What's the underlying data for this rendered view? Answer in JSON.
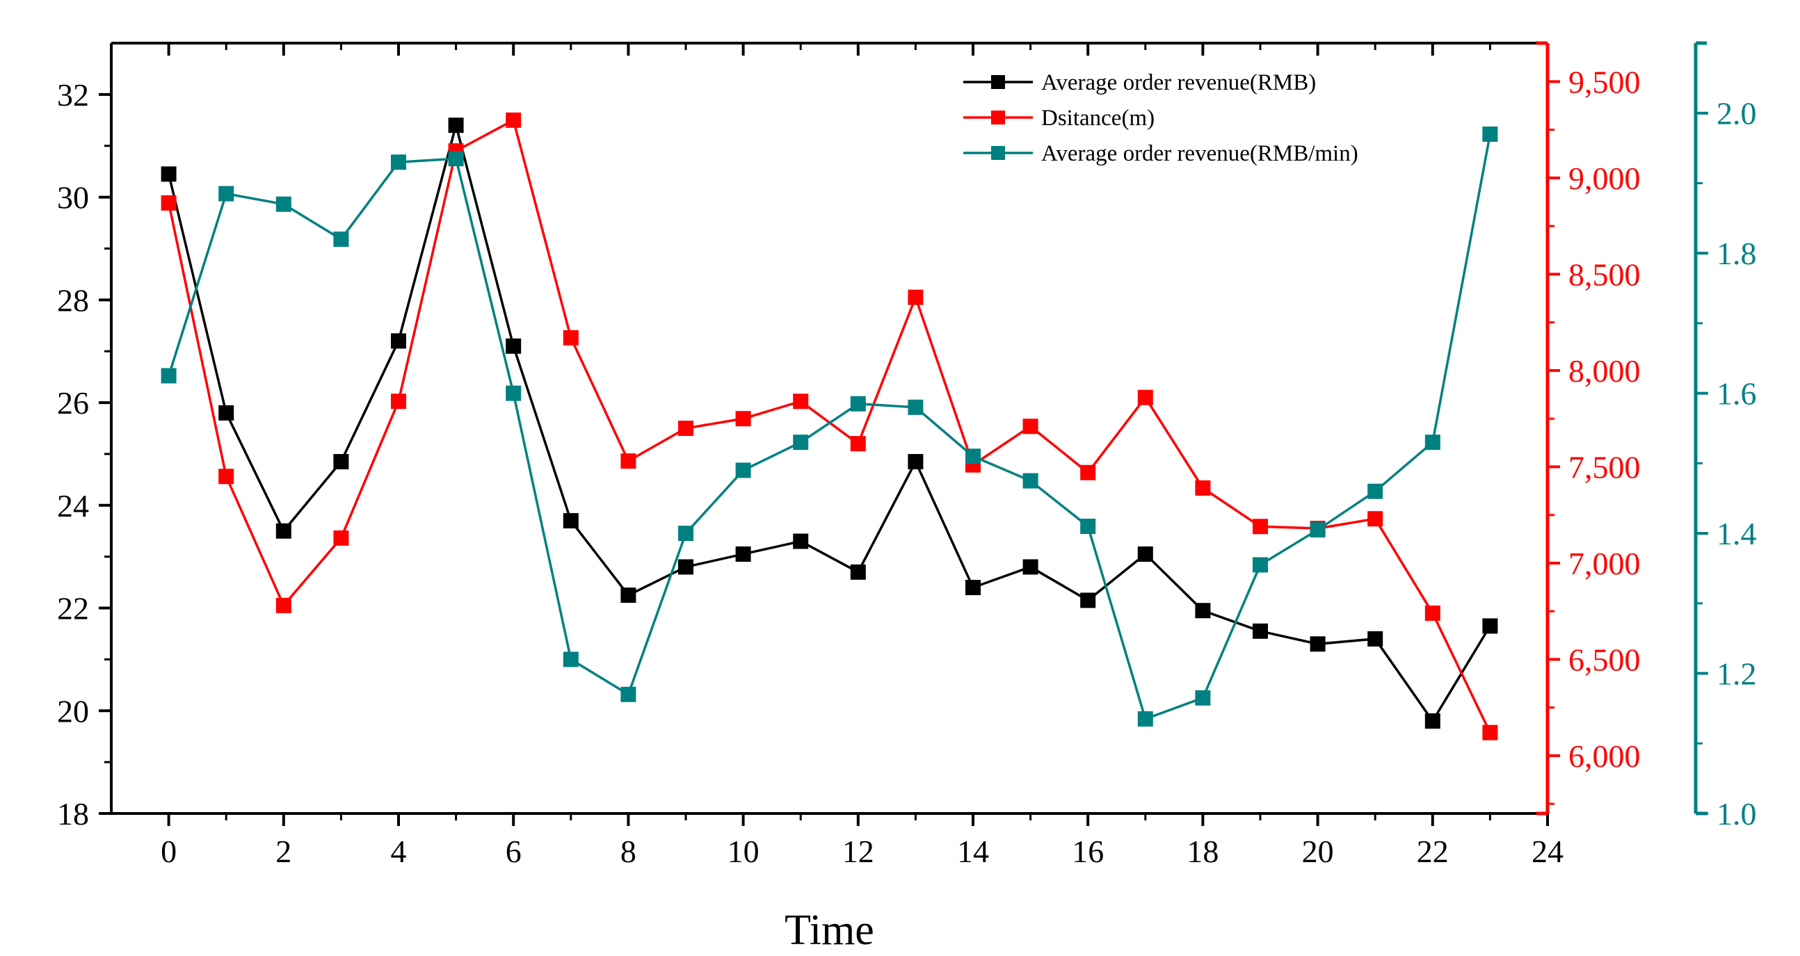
{
  "chart_data": {
    "type": "line",
    "xlabel": "Time",
    "x": [
      0,
      1,
      2,
      3,
      4,
      5,
      6,
      7,
      8,
      9,
      10,
      11,
      12,
      13,
      14,
      15,
      16,
      17,
      18,
      19,
      20,
      21,
      22,
      23
    ],
    "x_ticks": [
      0,
      2,
      4,
      6,
      8,
      10,
      12,
      14,
      16,
      18,
      20,
      22,
      24
    ],
    "x_tick_labels": [
      "0",
      "2",
      "4",
      "6",
      "8",
      "10",
      "12",
      "14",
      "16",
      "18",
      "20",
      "22",
      "24"
    ],
    "xlim": [
      -1,
      24
    ],
    "legend_position": "top-right",
    "grid": false,
    "axes": {
      "left": {
        "ylim": [
          18,
          33
        ],
        "ticks": [
          18,
          20,
          22,
          24,
          26,
          28,
          30,
          32
        ],
        "tick_labels": [
          "18",
          "20",
          "22",
          "24",
          "26",
          "28",
          "30",
          "32"
        ],
        "color": "#000000"
      },
      "right1": {
        "ylim": [
          5700,
          9700
        ],
        "ticks": [
          6000,
          6500,
          7000,
          7500,
          8000,
          8500,
          9000,
          9500
        ],
        "tick_labels": [
          "6,000",
          "6,500",
          "7,000",
          "7,500",
          "8,000",
          "8,500",
          "9,000",
          "9,500"
        ],
        "color": "#ff0000"
      },
      "right2": {
        "ylim": [
          1.0,
          2.1
        ],
        "ticks": [
          1.0,
          1.2,
          1.4,
          1.6,
          1.8,
          2.0
        ],
        "tick_labels": [
          "1.0",
          "1.2",
          "1.4",
          "1.6",
          "1.8",
          "2.0"
        ],
        "color": "#008080"
      }
    },
    "series": [
      {
        "name": "Average order revenue(RMB)",
        "axis": "left",
        "color": "#000000",
        "values": [
          30.45,
          25.8,
          23.5,
          24.85,
          27.2,
          31.4,
          27.1,
          23.7,
          22.25,
          22.8,
          23.05,
          23.3,
          22.7,
          24.85,
          22.4,
          22.8,
          22.15,
          23.05,
          21.95,
          21.55,
          21.3,
          21.4,
          19.8,
          21.65
        ]
      },
      {
        "name": "Dsitance(m)",
        "axis": "right1",
        "color": "#ff0000",
        "values": [
          8870,
          7450,
          6780,
          7130,
          7840,
          9140,
          9300,
          8170,
          7530,
          7700,
          7750,
          7840,
          7620,
          8380,
          7510,
          7710,
          7470,
          7860,
          7390,
          7190,
          7180,
          7230,
          6740,
          6120
        ]
      },
      {
        "name": "Average order revenue(RMB/min)",
        "axis": "right2",
        "color": "#008080",
        "values": [
          1.625,
          1.885,
          1.87,
          1.82,
          1.93,
          1.935,
          1.6,
          1.22,
          1.17,
          1.4,
          1.49,
          1.53,
          1.585,
          1.58,
          1.51,
          1.475,
          1.41,
          1.135,
          1.165,
          1.355,
          1.405,
          1.46,
          1.53,
          1.97
        ]
      }
    ]
  }
}
